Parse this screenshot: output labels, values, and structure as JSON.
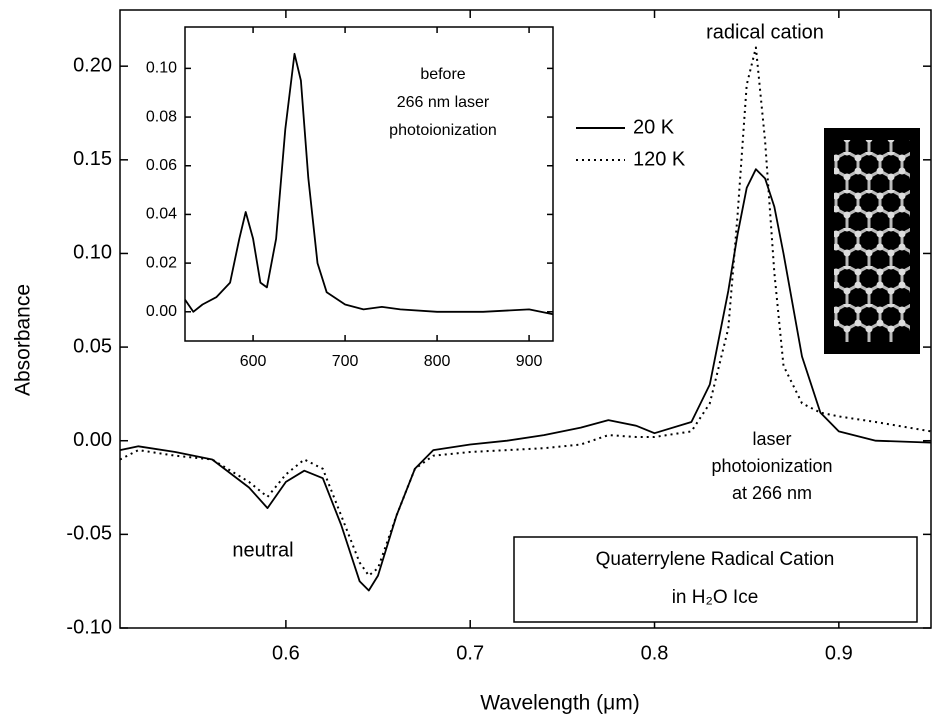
{
  "chart_data": [
    {
      "type": "line",
      "x_label": "Wavelength (μm)",
      "y_label": "Absorbance",
      "xlim": [
        0.51,
        0.95
      ],
      "ylim": [
        -0.1,
        0.23
      ],
      "xticks": [
        0.6,
        0.7,
        0.8,
        0.9
      ],
      "yticks": [
        {
          "value": -0.1,
          "label": "-0.10"
        },
        {
          "value": -0.05,
          "label": "-0.05"
        },
        {
          "value": 0,
          "label": "0.00"
        },
        {
          "value": 0.05,
          "label": "0.05"
        },
        {
          "value": 0.1,
          "label": "0.10"
        },
        {
          "value": 0.15,
          "label": "0.15"
        },
        {
          "value": 0.2,
          "label": "0.20"
        }
      ],
      "x": [
        0.51,
        0.52,
        0.54,
        0.56,
        0.58,
        0.59,
        0.6,
        0.61,
        0.62,
        0.63,
        0.64,
        0.645,
        0.65,
        0.66,
        0.67,
        0.68,
        0.7,
        0.72,
        0.74,
        0.76,
        0.775,
        0.79,
        0.8,
        0.82,
        0.83,
        0.84,
        0.845,
        0.85,
        0.855,
        0.86,
        0.865,
        0.87,
        0.88,
        0.89,
        0.9,
        0.92,
        0.95
      ],
      "series": [
        {
          "name": "20 K",
          "color": "#000000",
          "style": "solid",
          "values": [
            -0.005,
            -0.003,
            -0.006,
            -0.01,
            -0.025,
            -0.036,
            -0.022,
            -0.016,
            -0.02,
            -0.045,
            -0.075,
            -0.08,
            -0.072,
            -0.04,
            -0.015,
            -0.005,
            -0.002,
            0.0,
            0.003,
            0.007,
            0.011,
            0.008,
            0.004,
            0.01,
            0.03,
            0.08,
            0.11,
            0.135,
            0.145,
            0.14,
            0.125,
            0.1,
            0.045,
            0.015,
            0.005,
            0.0,
            -0.001
          ]
        },
        {
          "name": "120 K",
          "color": "#000000",
          "style": "dotted",
          "values": [
            -0.01,
            -0.005,
            -0.008,
            -0.01,
            -0.022,
            -0.03,
            -0.018,
            -0.01,
            -0.015,
            -0.04,
            -0.065,
            -0.072,
            -0.068,
            -0.04,
            -0.015,
            -0.008,
            -0.006,
            -0.005,
            -0.004,
            -0.002,
            0.003,
            0.002,
            0.002,
            0.005,
            0.02,
            0.06,
            0.12,
            0.19,
            0.21,
            0.16,
            0.09,
            0.04,
            0.02,
            0.015,
            0.013,
            0.01,
            0.005
          ]
        }
      ],
      "annotations": [
        [
          "radical cation"
        ],
        [
          "laser",
          "photoionization",
          "at 266 nm"
        ],
        [
          "neutral"
        ],
        [
          "Quaterrylene Radical Cation",
          "in H₂O Ice"
        ]
      ]
    },
    {
      "type": "line",
      "xlim": [
        526,
        926
      ],
      "ylim": [
        -0.012,
        0.117
      ],
      "xticks": [
        600,
        700,
        800,
        900
      ],
      "yticks": [
        {
          "value": 0,
          "label": "0.00"
        },
        {
          "value": 0.02,
          "label": "0.02"
        },
        {
          "value": 0.04,
          "label": "0.04"
        },
        {
          "value": 0.06,
          "label": "0.06"
        },
        {
          "value": 0.08,
          "label": "0.08"
        },
        {
          "value": 0.1,
          "label": "0.10"
        }
      ],
      "x": [
        526,
        535,
        545,
        560,
        575,
        585,
        592,
        600,
        608,
        615,
        625,
        635,
        645,
        652,
        660,
        670,
        680,
        700,
        720,
        740,
        760,
        800,
        850,
        900,
        926
      ],
      "series": [
        {
          "color": "#000000",
          "style": "solid",
          "values": [
            0.005,
            0.0,
            0.003,
            0.006,
            0.012,
            0.03,
            0.041,
            0.03,
            0.012,
            0.01,
            0.03,
            0.075,
            0.106,
            0.095,
            0.055,
            0.02,
            0.008,
            0.003,
            0.001,
            0.002,
            0.001,
            0.0,
            0.0,
            0.001,
            -0.001
          ]
        }
      ],
      "annotations": [
        [
          "before",
          "266 nm laser",
          "photoionization"
        ]
      ]
    }
  ]
}
